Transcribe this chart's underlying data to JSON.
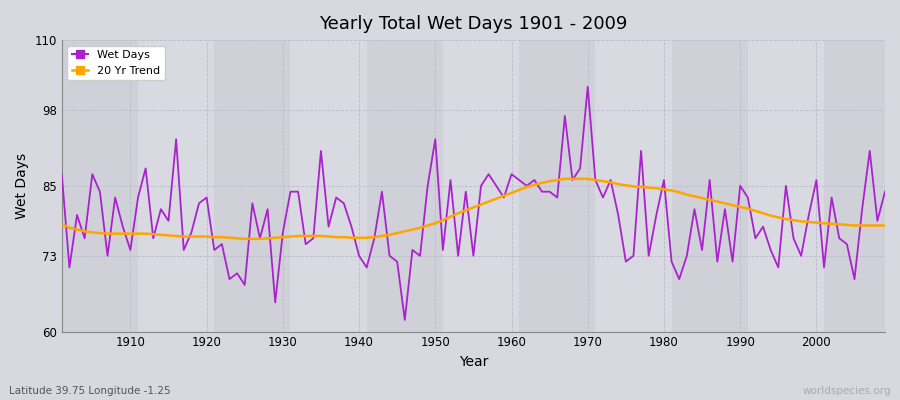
{
  "title": "Yearly Total Wet Days 1901 - 2009",
  "xlabel": "Year",
  "ylabel": "Wet Days",
  "subtitle": "Latitude 39.75 Longitude -1.25",
  "watermark": "worldspecies.org",
  "ylim": [
    60,
    110
  ],
  "yticks": [
    60,
    73,
    85,
    98,
    110
  ],
  "line_color": "#aa22cc",
  "trend_color": "#FFA500",
  "fig_bg": "#d8d8e0",
  "plot_bg": "#dcdce4",
  "years": [
    1901,
    1902,
    1903,
    1904,
    1905,
    1906,
    1907,
    1908,
    1909,
    1910,
    1911,
    1912,
    1913,
    1914,
    1915,
    1916,
    1917,
    1918,
    1919,
    1920,
    1921,
    1922,
    1923,
    1924,
    1925,
    1926,
    1927,
    1928,
    1929,
    1930,
    1931,
    1932,
    1933,
    1934,
    1935,
    1936,
    1937,
    1938,
    1939,
    1940,
    1941,
    1942,
    1943,
    1944,
    1945,
    1946,
    1947,
    1948,
    1949,
    1950,
    1951,
    1952,
    1953,
    1954,
    1955,
    1956,
    1957,
    1958,
    1959,
    1960,
    1961,
    1962,
    1963,
    1964,
    1965,
    1966,
    1967,
    1968,
    1969,
    1970,
    1971,
    1972,
    1973,
    1974,
    1975,
    1976,
    1977,
    1978,
    1979,
    1980,
    1981,
    1982,
    1983,
    1984,
    1985,
    1986,
    1987,
    1988,
    1989,
    1990,
    1991,
    1992,
    1993,
    1994,
    1995,
    1996,
    1997,
    1998,
    1999,
    2000,
    2001,
    2002,
    2003,
    2004,
    2005,
    2006,
    2007,
    2008,
    2009
  ],
  "wet_days": [
    87,
    71,
    80,
    76,
    87,
    84,
    73,
    83,
    78,
    74,
    83,
    88,
    76,
    81,
    79,
    93,
    74,
    77,
    82,
    83,
    74,
    75,
    69,
    70,
    68,
    82,
    76,
    81,
    65,
    77,
    84,
    84,
    75,
    76,
    91,
    78,
    83,
    82,
    78,
    73,
    71,
    76,
    84,
    73,
    72,
    62,
    74,
    73,
    85,
    93,
    74,
    86,
    73,
    84,
    73,
    85,
    87,
    85,
    83,
    87,
    86,
    85,
    86,
    84,
    84,
    83,
    97,
    86,
    88,
    102,
    86,
    83,
    86,
    80,
    72,
    73,
    91,
    73,
    80,
    86,
    72,
    69,
    73,
    81,
    74,
    86,
    72,
    81,
    72,
    85,
    83,
    76,
    78,
    74,
    71,
    85,
    76,
    73,
    80,
    86,
    71,
    83,
    76,
    75,
    69,
    81,
    91,
    79,
    84
  ],
  "trend_values": [
    78.5,
    77.8,
    77.5,
    77.2,
    77.0,
    76.9,
    76.8,
    76.8,
    76.8,
    76.8,
    76.8,
    76.8,
    76.7,
    76.6,
    76.5,
    76.4,
    76.3,
    76.3,
    76.3,
    76.3,
    76.2,
    76.2,
    76.1,
    76.0,
    75.9,
    75.9,
    75.9,
    76.0,
    76.1,
    76.2,
    76.3,
    76.4,
    76.4,
    76.4,
    76.4,
    76.3,
    76.2,
    76.2,
    76.1,
    76.1,
    76.1,
    76.2,
    76.4,
    76.6,
    76.9,
    77.2,
    77.5,
    77.8,
    78.2,
    78.6,
    79.1,
    79.7,
    80.3,
    80.8,
    81.3,
    81.8,
    82.3,
    82.8,
    83.3,
    83.8,
    84.3,
    84.8,
    85.2,
    85.5,
    85.8,
    86.0,
    86.2,
    86.2,
    86.2,
    86.2,
    86.0,
    85.8,
    85.6,
    85.3,
    85.1,
    84.9,
    84.8,
    84.7,
    84.6,
    84.4,
    84.2,
    83.9,
    83.5,
    83.2,
    82.9,
    82.6,
    82.3,
    82.0,
    81.7,
    81.4,
    81.1,
    80.7,
    80.3,
    79.9,
    79.6,
    79.3,
    79.1,
    78.9,
    78.8,
    78.7,
    78.6,
    78.5,
    78.4,
    78.3,
    78.2,
    78.2,
    78.2,
    78.2,
    78.2
  ]
}
